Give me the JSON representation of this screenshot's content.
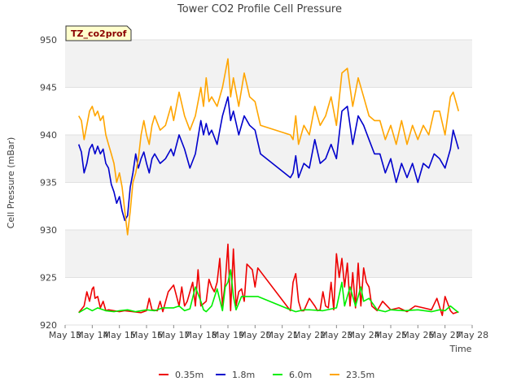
{
  "chart_data": {
    "type": "line",
    "title": "Tower CO2 Profile Cell Pressure",
    "xlabel": "Time",
    "ylabel": "Cell Pressure (mBar)",
    "site_label": "TZ_co2prof",
    "ylim": [
      920,
      950
    ],
    "yticks": [
      920,
      925,
      930,
      935,
      940,
      945,
      950
    ],
    "xlim": [
      0,
      15
    ],
    "xtick_labels": [
      "May 13",
      "May 14",
      "May 15",
      "May 16",
      "May 17",
      "May 18",
      "May 19",
      "May 20",
      "May 21",
      "May 22",
      "May 23",
      "May 24",
      "May 25",
      "May 26",
      "May 27",
      "May 28"
    ],
    "legend_position": "bottom",
    "grid": true,
    "colors": {
      "s035": "#ee0000",
      "s18": "#0000cc",
      "s60": "#00ee00",
      "s235": "#ffa500"
    },
    "series": [
      {
        "name": "0.35m",
        "color": "#ee0000",
        "x": [
          0.5,
          0.7,
          0.8,
          0.9,
          1.0,
          1.05,
          1.1,
          1.2,
          1.3,
          1.4,
          1.5,
          1.6,
          1.8,
          2.0,
          2.2,
          2.5,
          2.8,
          3.0,
          3.1,
          3.2,
          3.4,
          3.5,
          3.6,
          3.8,
          4.0,
          4.2,
          4.3,
          4.4,
          4.5,
          4.7,
          4.8,
          4.9,
          5.0,
          5.2,
          5.3,
          5.4,
          5.5,
          5.6,
          5.7,
          5.8,
          5.9,
          6.0,
          6.1,
          6.2,
          6.3,
          6.4,
          6.5,
          6.6,
          6.7,
          6.9,
          7.0,
          7.1,
          8.3,
          8.4,
          8.5,
          8.6,
          8.7,
          8.8,
          9.0,
          9.2,
          9.3,
          9.4,
          9.5,
          9.6,
          9.7,
          9.8,
          9.9,
          10.0,
          10.1,
          10.2,
          10.3,
          10.4,
          10.5,
          10.6,
          10.7,
          10.8,
          10.9,
          11.0,
          11.1,
          11.2,
          11.3,
          11.5,
          11.7,
          12.0,
          12.3,
          12.6,
          12.9,
          13.2,
          13.5,
          13.7,
          13.9,
          14.0,
          14.2,
          14.3,
          14.5
        ],
        "y": [
          921.3,
          922.0,
          923.5,
          922.5,
          923.8,
          924.0,
          922.8,
          923.0,
          921.8,
          922.5,
          921.5,
          921.6,
          921.5,
          921.4,
          921.5,
          921.4,
          921.3,
          921.5,
          922.8,
          921.6,
          921.5,
          922.5,
          921.4,
          923.5,
          924.2,
          922.0,
          924.0,
          922.0,
          922.5,
          924.5,
          922.0,
          925.8,
          922.0,
          922.5,
          924.8,
          924.0,
          923.5,
          924.5,
          927.0,
          922.0,
          924.5,
          928.5,
          921.5,
          928.0,
          922.0,
          923.5,
          923.8,
          922.5,
          926.4,
          925.8,
          924.0,
          926.0,
          921.5,
          924.5,
          925.4,
          922.5,
          921.5,
          921.5,
          922.8,
          922.0,
          921.5,
          921.6,
          923.5,
          922.0,
          921.8,
          924.5,
          921.6,
          927.5,
          925.0,
          927.0,
          924.0,
          926.5,
          922.0,
          925.5,
          921.8,
          926.5,
          922.0,
          926.0,
          924.5,
          924.0,
          922.0,
          921.5,
          922.5,
          921.6,
          921.8,
          921.4,
          922.0,
          921.8,
          921.6,
          922.8,
          921.0,
          923.0,
          921.5,
          921.2,
          921.4
        ]
      },
      {
        "name": "1.8m",
        "color": "#0000cc",
        "x": [
          0.5,
          0.6,
          0.7,
          0.8,
          0.9,
          1.0,
          1.1,
          1.2,
          1.3,
          1.4,
          1.5,
          1.6,
          1.7,
          1.8,
          1.9,
          2.0,
          2.1,
          2.2,
          2.3,
          2.4,
          2.5,
          2.6,
          2.7,
          2.8,
          2.9,
          3.0,
          3.1,
          3.2,
          3.3,
          3.5,
          3.7,
          3.9,
          4.0,
          4.2,
          4.4,
          4.6,
          4.8,
          5.0,
          5.1,
          5.2,
          5.3,
          5.4,
          5.6,
          5.8,
          6.0,
          6.1,
          6.2,
          6.4,
          6.6,
          6.8,
          7.0,
          7.2,
          8.3,
          8.4,
          8.5,
          8.6,
          8.8,
          9.0,
          9.2,
          9.4,
          9.6,
          9.8,
          10.0,
          10.2,
          10.4,
          10.6,
          10.8,
          11.0,
          11.2,
          11.4,
          11.6,
          11.8,
          12.0,
          12.2,
          12.4,
          12.6,
          12.8,
          13.0,
          13.2,
          13.4,
          13.6,
          13.8,
          14.0,
          14.2,
          14.3,
          14.5
        ],
        "y": [
          939.0,
          938.2,
          936.0,
          937.0,
          938.5,
          939.0,
          938.0,
          938.8,
          938.0,
          938.5,
          937.0,
          936.5,
          934.8,
          934.0,
          932.8,
          933.5,
          932.0,
          931.0,
          931.5,
          934.5,
          936.0,
          938.0,
          936.5,
          937.5,
          938.2,
          937.0,
          936.0,
          937.5,
          938.0,
          937.0,
          937.5,
          938.5,
          937.8,
          940.0,
          938.5,
          936.5,
          938.0,
          941.5,
          940.0,
          941.2,
          940.0,
          940.5,
          939.0,
          942.0,
          944.0,
          941.5,
          942.5,
          940.0,
          942.0,
          941.0,
          940.5,
          938.0,
          935.5,
          936.0,
          937.8,
          935.5,
          937.0,
          936.5,
          939.5,
          937.0,
          937.5,
          939.0,
          937.5,
          942.5,
          943.0,
          939.0,
          942.0,
          941.0,
          939.5,
          938.0,
          938.0,
          936.0,
          937.5,
          935.0,
          937.0,
          935.5,
          937.0,
          935.0,
          937.0,
          936.5,
          938.0,
          937.5,
          936.5,
          938.5,
          940.5,
          938.5
        ]
      },
      {
        "name": "6.0m",
        "color": "#00ee00",
        "x": [
          0.5,
          0.8,
          1.0,
          1.2,
          1.5,
          1.8,
          2.0,
          2.3,
          2.6,
          3.0,
          3.3,
          3.6,
          4.0,
          4.2,
          4.4,
          4.6,
          4.8,
          5.0,
          5.1,
          5.2,
          5.4,
          5.6,
          5.8,
          5.9,
          6.0,
          6.1,
          6.2,
          6.3,
          6.5,
          7.1,
          8.3,
          8.5,
          8.8,
          9.0,
          9.5,
          10.0,
          10.2,
          10.3,
          10.5,
          10.7,
          10.9,
          11.0,
          11.2,
          11.5,
          11.8,
          12.0,
          12.5,
          13.0,
          13.5,
          13.8,
          14.0,
          14.2,
          14.5
        ],
        "y": [
          921.3,
          921.8,
          921.5,
          921.8,
          921.5,
          921.4,
          921.5,
          921.6,
          921.4,
          921.6,
          921.5,
          921.8,
          921.8,
          922.0,
          921.5,
          921.7,
          924.0,
          922.5,
          921.6,
          921.4,
          922.0,
          923.8,
          921.5,
          924.0,
          924.5,
          925.8,
          923.0,
          921.6,
          923.0,
          923.0,
          921.6,
          921.4,
          921.6,
          921.6,
          921.5,
          921.8,
          924.5,
          922.0,
          924.0,
          922.0,
          924.0,
          922.5,
          922.8,
          921.6,
          921.4,
          921.6,
          921.5,
          921.6,
          921.4,
          921.6,
          921.5,
          922.0,
          921.3
        ]
      },
      {
        "name": "23.5m",
        "color": "#ffa500",
        "x": [
          0.5,
          0.6,
          0.7,
          0.8,
          0.9,
          1.0,
          1.1,
          1.2,
          1.3,
          1.4,
          1.5,
          1.6,
          1.7,
          1.8,
          1.9,
          2.0,
          2.1,
          2.2,
          2.3,
          2.4,
          2.5,
          2.6,
          2.7,
          2.8,
          2.9,
          3.0,
          3.1,
          3.2,
          3.3,
          3.5,
          3.7,
          3.9,
          4.0,
          4.2,
          4.4,
          4.6,
          4.8,
          5.0,
          5.1,
          5.2,
          5.3,
          5.4,
          5.6,
          5.8,
          6.0,
          6.1,
          6.2,
          6.4,
          6.6,
          6.8,
          7.0,
          7.2,
          8.3,
          8.4,
          8.5,
          8.6,
          8.8,
          9.0,
          9.2,
          9.4,
          9.6,
          9.8,
          10.0,
          10.2,
          10.4,
          10.6,
          10.8,
          11.0,
          11.2,
          11.4,
          11.6,
          11.8,
          12.0,
          12.2,
          12.4,
          12.6,
          12.8,
          13.0,
          13.2,
          13.4,
          13.6,
          13.8,
          14.0,
          14.2,
          14.3,
          14.5
        ],
        "y": [
          942.0,
          941.5,
          939.5,
          941.0,
          942.5,
          943.0,
          942.0,
          942.5,
          941.5,
          942.0,
          940.0,
          939.0,
          938.0,
          937.0,
          935.0,
          936.0,
          934.5,
          932.0,
          929.5,
          932.0,
          935.0,
          936.0,
          937.5,
          940.0,
          941.5,
          940.0,
          939.0,
          941.0,
          942.0,
          940.5,
          941.0,
          943.0,
          941.5,
          944.5,
          942.0,
          940.5,
          942.0,
          945.0,
          943.0,
          946.0,
          943.5,
          944.0,
          943.0,
          945.0,
          948.0,
          944.0,
          946.0,
          943.0,
          946.5,
          944.0,
          943.5,
          941.0,
          940.0,
          939.5,
          942.0,
          939.0,
          941.0,
          940.0,
          943.0,
          941.0,
          942.0,
          944.0,
          941.0,
          946.5,
          947.0,
          943.0,
          946.0,
          944.0,
          942.0,
          941.5,
          941.5,
          939.5,
          941.0,
          939.0,
          941.5,
          939.0,
          941.0,
          939.5,
          941.0,
          940.0,
          942.5,
          942.5,
          940.0,
          944.0,
          944.5,
          942.5
        ]
      }
    ]
  }
}
